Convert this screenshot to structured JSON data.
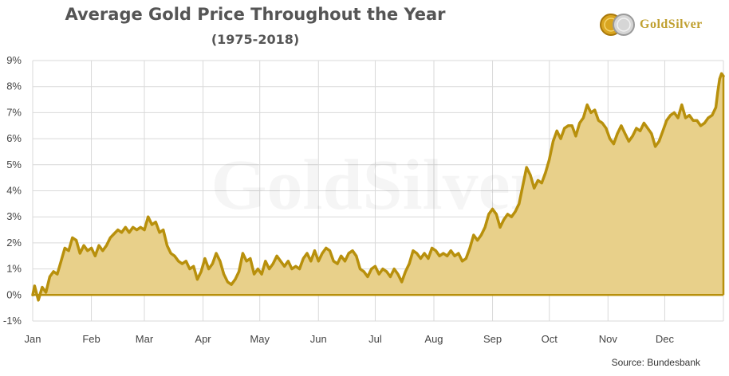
{
  "header": {
    "title": "Average Gold Price Throughout the Year",
    "subtitle": "(1975-2018)"
  },
  "logo": {
    "icon": "gold-silver-coins-icon",
    "text": "GoldSilver"
  },
  "watermark": "GoldSilver",
  "source": "Source: Bundesbank",
  "colors": {
    "line": "#b8900c",
    "fill": "#e8d08a",
    "grid": "#d9d9d9"
  },
  "chart_data": {
    "type": "area",
    "title": "Average Gold Price Throughout the Year",
    "subtitle": "(1975-2018)",
    "xlabel": "",
    "ylabel": "",
    "ylim": [
      -1,
      9
    ],
    "y_ticks": [
      "-1%",
      "0%",
      "1%",
      "2%",
      "3%",
      "4%",
      "5%",
      "6%",
      "7%",
      "8%",
      "9%"
    ],
    "x_tick_labels": [
      "Jan",
      "Feb",
      "Mar",
      "Apr",
      "May",
      "Jun",
      "Jul",
      "Aug",
      "Sep",
      "Oct",
      "Nov",
      "Dec"
    ],
    "x_range_days": [
      1,
      366
    ],
    "grid": true,
    "legend": "none",
    "series": [
      {
        "values": [
          [
            1,
            0.0
          ],
          [
            2,
            0.35
          ],
          [
            4,
            -0.2
          ],
          [
            6,
            0.3
          ],
          [
            8,
            0.1
          ],
          [
            10,
            0.7
          ],
          [
            12,
            0.9
          ],
          [
            14,
            0.8
          ],
          [
            16,
            1.3
          ],
          [
            18,
            1.8
          ],
          [
            20,
            1.7
          ],
          [
            22,
            2.2
          ],
          [
            24,
            2.1
          ],
          [
            26,
            1.6
          ],
          [
            28,
            1.9
          ],
          [
            30,
            1.7
          ],
          [
            32,
            1.8
          ],
          [
            34,
            1.5
          ],
          [
            36,
            1.9
          ],
          [
            38,
            1.7
          ],
          [
            40,
            1.9
          ],
          [
            42,
            2.2
          ],
          [
            44,
            2.35
          ],
          [
            46,
            2.5
          ],
          [
            48,
            2.4
          ],
          [
            50,
            2.6
          ],
          [
            52,
            2.4
          ],
          [
            54,
            2.6
          ],
          [
            56,
            2.5
          ],
          [
            58,
            2.6
          ],
          [
            60,
            2.5
          ],
          [
            62,
            3.0
          ],
          [
            64,
            2.7
          ],
          [
            66,
            2.8
          ],
          [
            68,
            2.4
          ],
          [
            70,
            2.5
          ],
          [
            72,
            1.9
          ],
          [
            74,
            1.6
          ],
          [
            76,
            1.5
          ],
          [
            78,
            1.3
          ],
          [
            80,
            1.2
          ],
          [
            82,
            1.3
          ],
          [
            84,
            1.0
          ],
          [
            86,
            1.1
          ],
          [
            88,
            0.6
          ],
          [
            90,
            0.9
          ],
          [
            92,
            1.4
          ],
          [
            94,
            1.0
          ],
          [
            96,
            1.2
          ],
          [
            98,
            1.6
          ],
          [
            100,
            1.3
          ],
          [
            102,
            0.8
          ],
          [
            104,
            0.5
          ],
          [
            106,
            0.4
          ],
          [
            108,
            0.6
          ],
          [
            110,
            0.9
          ],
          [
            112,
            1.6
          ],
          [
            114,
            1.3
          ],
          [
            116,
            1.4
          ],
          [
            118,
            0.8
          ],
          [
            120,
            1.0
          ],
          [
            122,
            0.8
          ],
          [
            124,
            1.3
          ],
          [
            126,
            1.0
          ],
          [
            128,
            1.2
          ],
          [
            130,
            1.5
          ],
          [
            132,
            1.3
          ],
          [
            134,
            1.1
          ],
          [
            136,
            1.3
          ],
          [
            138,
            1.0
          ],
          [
            140,
            1.1
          ],
          [
            142,
            1.0
          ],
          [
            144,
            1.4
          ],
          [
            146,
            1.6
          ],
          [
            148,
            1.3
          ],
          [
            150,
            1.7
          ],
          [
            152,
            1.3
          ],
          [
            154,
            1.6
          ],
          [
            156,
            1.8
          ],
          [
            158,
            1.7
          ],
          [
            160,
            1.3
          ],
          [
            162,
            1.2
          ],
          [
            164,
            1.5
          ],
          [
            166,
            1.3
          ],
          [
            168,
            1.6
          ],
          [
            170,
            1.7
          ],
          [
            172,
            1.5
          ],
          [
            174,
            1.0
          ],
          [
            176,
            0.9
          ],
          [
            178,
            0.7
          ],
          [
            180,
            1.0
          ],
          [
            182,
            1.1
          ],
          [
            184,
            0.8
          ],
          [
            186,
            1.0
          ],
          [
            188,
            0.9
          ],
          [
            190,
            0.7
          ],
          [
            192,
            1.0
          ],
          [
            194,
            0.8
          ],
          [
            196,
            0.5
          ],
          [
            198,
            0.9
          ],
          [
            200,
            1.2
          ],
          [
            202,
            1.7
          ],
          [
            204,
            1.6
          ],
          [
            206,
            1.4
          ],
          [
            208,
            1.6
          ],
          [
            210,
            1.4
          ],
          [
            212,
            1.8
          ],
          [
            214,
            1.7
          ],
          [
            216,
            1.5
          ],
          [
            218,
            1.6
          ],
          [
            220,
            1.5
          ],
          [
            222,
            1.7
          ],
          [
            224,
            1.5
          ],
          [
            226,
            1.6
          ],
          [
            228,
            1.3
          ],
          [
            230,
            1.4
          ],
          [
            232,
            1.8
          ],
          [
            234,
            2.3
          ],
          [
            236,
            2.1
          ],
          [
            238,
            2.3
          ],
          [
            240,
            2.6
          ],
          [
            242,
            3.1
          ],
          [
            244,
            3.3
          ],
          [
            246,
            3.1
          ],
          [
            248,
            2.6
          ],
          [
            250,
            2.9
          ],
          [
            252,
            3.1
          ],
          [
            254,
            3.0
          ],
          [
            256,
            3.2
          ],
          [
            258,
            3.5
          ],
          [
            260,
            4.2
          ],
          [
            262,
            4.9
          ],
          [
            264,
            4.6
          ],
          [
            266,
            4.1
          ],
          [
            268,
            4.4
          ],
          [
            270,
            4.3
          ],
          [
            272,
            4.7
          ],
          [
            274,
            5.2
          ],
          [
            276,
            5.9
          ],
          [
            278,
            6.3
          ],
          [
            280,
            6.0
          ],
          [
            282,
            6.4
          ],
          [
            284,
            6.5
          ],
          [
            286,
            6.5
          ],
          [
            288,
            6.1
          ],
          [
            290,
            6.6
          ],
          [
            292,
            6.8
          ],
          [
            294,
            7.3
          ],
          [
            296,
            7.0
          ],
          [
            298,
            7.1
          ],
          [
            300,
            6.7
          ],
          [
            302,
            6.6
          ],
          [
            304,
            6.4
          ],
          [
            306,
            6.0
          ],
          [
            308,
            5.8
          ],
          [
            310,
            6.2
          ],
          [
            312,
            6.5
          ],
          [
            314,
            6.2
          ],
          [
            316,
            5.9
          ],
          [
            318,
            6.1
          ],
          [
            320,
            6.4
          ],
          [
            322,
            6.3
          ],
          [
            324,
            6.6
          ],
          [
            326,
            6.4
          ],
          [
            328,
            6.2
          ],
          [
            330,
            5.7
          ],
          [
            332,
            5.9
          ],
          [
            334,
            6.3
          ],
          [
            336,
            6.7
          ],
          [
            338,
            6.9
          ],
          [
            340,
            7.0
          ],
          [
            342,
            6.8
          ],
          [
            344,
            7.3
          ],
          [
            346,
            6.8
          ],
          [
            348,
            6.9
          ],
          [
            350,
            6.7
          ],
          [
            352,
            6.7
          ],
          [
            354,
            6.5
          ],
          [
            356,
            6.6
          ],
          [
            358,
            6.8
          ],
          [
            360,
            6.9
          ],
          [
            362,
            7.2
          ],
          [
            363,
            7.8
          ],
          [
            364,
            8.3
          ],
          [
            365,
            8.5
          ],
          [
            366,
            8.4
          ]
        ]
      }
    ]
  }
}
